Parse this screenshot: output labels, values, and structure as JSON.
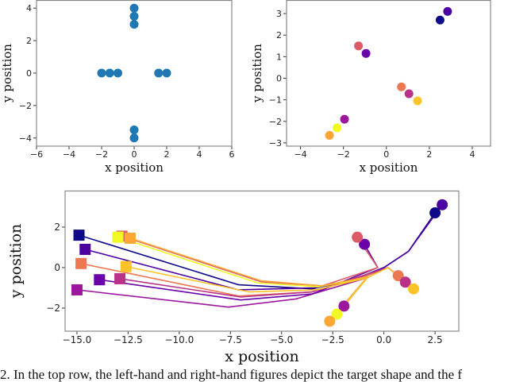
{
  "caption": "2. In the top row, the left-hand and right-hand figures depict the target shape and the f",
  "chart_data": [
    {
      "type": "scatter",
      "xlabel": "x position",
      "ylabel": "y position",
      "xlim": [
        -6,
        6
      ],
      "ylim": [
        -4.5,
        4.5
      ],
      "xticks": [
        -6,
        -4,
        -2,
        0,
        2,
        4,
        6
      ],
      "xtick_labels": [
        "−6",
        "−4",
        "−2",
        "0",
        "2",
        "4",
        "6"
      ],
      "yticks": [
        -4,
        -2,
        0,
        2,
        4
      ],
      "ytick_labels": [
        "−4",
        "−2",
        "0",
        "2",
        "4"
      ],
      "grid": false,
      "color": "#1f77b4",
      "points": [
        [
          0,
          4
        ],
        [
          0,
          3.5
        ],
        [
          0,
          3
        ],
        [
          -2,
          0
        ],
        [
          -1.5,
          0
        ],
        [
          -1,
          0
        ],
        [
          1.5,
          0
        ],
        [
          2,
          0
        ],
        [
          0,
          -3.5
        ],
        [
          0,
          -4
        ]
      ]
    },
    {
      "type": "scatter",
      "xlabel": "x position",
      "ylabel": "y position",
      "xlim": [
        -4.65,
        4.85
      ],
      "ylim": [
        -3.15,
        3.63
      ],
      "xticks": [
        -4,
        -2,
        0,
        2,
        4
      ],
      "xtick_labels": [
        "−4",
        "−2",
        "0",
        "2",
        "4"
      ],
      "yticks": [
        -3,
        -2,
        -1,
        0,
        1,
        2,
        3
      ],
      "ytick_labels": [
        "−3",
        "−2",
        "−1",
        "0",
        "1",
        "2",
        "3"
      ],
      "grid": false,
      "points": [
        {
          "x": 2.5,
          "y": 2.7,
          "color": "#0d0887"
        },
        {
          "x": 2.85,
          "y": 3.1,
          "color": "#4c02a1"
        },
        {
          "x": -1.3,
          "y": 1.5,
          "color": "#db5c68"
        },
        {
          "x": -0.95,
          "y": 1.15,
          "color": "#6a00a8"
        },
        {
          "x": 0.7,
          "y": -0.4,
          "color": "#ed7953"
        },
        {
          "x": 1.05,
          "y": -0.72,
          "color": "#b83289"
        },
        {
          "x": 1.45,
          "y": -1.05,
          "color": "#fdc328"
        },
        {
          "x": -1.95,
          "y": -1.9,
          "color": "#9c179e"
        },
        {
          "x": -2.3,
          "y": -2.3,
          "color": "#f0f921"
        },
        {
          "x": -2.65,
          "y": -2.65,
          "color": "#fca636"
        }
      ]
    },
    {
      "type": "line",
      "xlabel": "x position",
      "ylabel": "y position",
      "xlim": [
        -15.58,
        3.66
      ],
      "ylim": [
        -3.14,
        3.8
      ],
      "xticks": [
        -15,
        -12.5,
        -10,
        -7.5,
        -5,
        -2.5,
        0,
        2.5
      ],
      "xtick_labels": [
        "−15.0",
        "−12.5",
        "−10.0",
        "−7.5",
        "−5.0",
        "−2.5",
        "0.0",
        "2.5"
      ],
      "yticks": [
        -2,
        0,
        2
      ],
      "ytick_labels": [
        "−2",
        "0",
        "2"
      ],
      "grid": false,
      "start_marker": "square",
      "end_marker": "circle",
      "series": [
        {
          "color": "#0d0887",
          "points": [
            [
              -14.9,
              1.6
            ],
            [
              -7.1,
              -0.85
            ],
            [
              -3.5,
              -1.05
            ],
            [
              -1.5,
              -0.6
            ],
            [
              0,
              0
            ],
            [
              1.2,
              0.8
            ],
            [
              2.5,
              2.7
            ]
          ]
        },
        {
          "color": "#4c02a1",
          "points": [
            [
              -14.6,
              0.9
            ],
            [
              -7.1,
              -1.1
            ],
            [
              -3.4,
              -1.0
            ],
            [
              -1.5,
              -0.6
            ],
            [
              0,
              0
            ],
            [
              1.2,
              0.8
            ],
            [
              2.85,
              3.1
            ]
          ]
        },
        {
          "color": "#ed7953",
          "points": [
            [
              -14.8,
              0.2
            ],
            [
              -7.1,
              -1.4
            ],
            [
              -3.5,
              -1.2
            ],
            [
              -0.8,
              -0.4
            ],
            [
              0.2,
              0
            ],
            [
              0.7,
              -0.4
            ]
          ]
        },
        {
          "color": "#9c179e",
          "points": [
            [
              -15,
              -1.1
            ],
            [
              -7.6,
              -1.95
            ],
            [
              -4.3,
              -1.55
            ],
            [
              -0.8,
              -0.5
            ],
            [
              -1.95,
              -1.9
            ]
          ]
        },
        {
          "color": "#6a00a8",
          "points": [
            [
              -13.9,
              -0.6
            ],
            [
              -7,
              -1.6
            ],
            [
              -3.5,
              -1.3
            ],
            [
              -0.3,
              0
            ],
            [
              -0.95,
              1.15
            ]
          ]
        },
        {
          "color": "#b83289",
          "points": [
            [
              -12.9,
              -0.55
            ],
            [
              -7,
              -1.45
            ],
            [
              -3.5,
              -1.2
            ],
            [
              0.2,
              0
            ],
            [
              1.05,
              -0.72
            ]
          ]
        },
        {
          "color": "#db5c68",
          "points": [
            [
              -12.8,
              1.55
            ],
            [
              -6,
              -0.7
            ],
            [
              -3,
              -0.9
            ],
            [
              -0.3,
              0
            ],
            [
              -1.3,
              1.5
            ]
          ]
        },
        {
          "color": "#f0f921",
          "points": [
            [
              -13,
              1.5
            ],
            [
              -6.2,
              -0.75
            ],
            [
              -3.2,
              -0.95
            ],
            [
              -0.8,
              -0.5
            ],
            [
              -2.3,
              -2.3
            ]
          ]
        },
        {
          "color": "#fca636",
          "points": [
            [
              -12.4,
              1.45
            ],
            [
              -6,
              -0.65
            ],
            [
              -3,
              -0.9
            ],
            [
              -0.8,
              -0.45
            ],
            [
              -2.65,
              -2.65
            ]
          ]
        },
        {
          "color": "#fdc328",
          "points": [
            [
              -12.6,
              0.05
            ],
            [
              -6.6,
              -1.2
            ],
            [
              -3.3,
              -1.1
            ],
            [
              -0.8,
              -0.5
            ],
            [
              0.2,
              0
            ],
            [
              1.45,
              -1.05
            ]
          ]
        }
      ]
    }
  ]
}
